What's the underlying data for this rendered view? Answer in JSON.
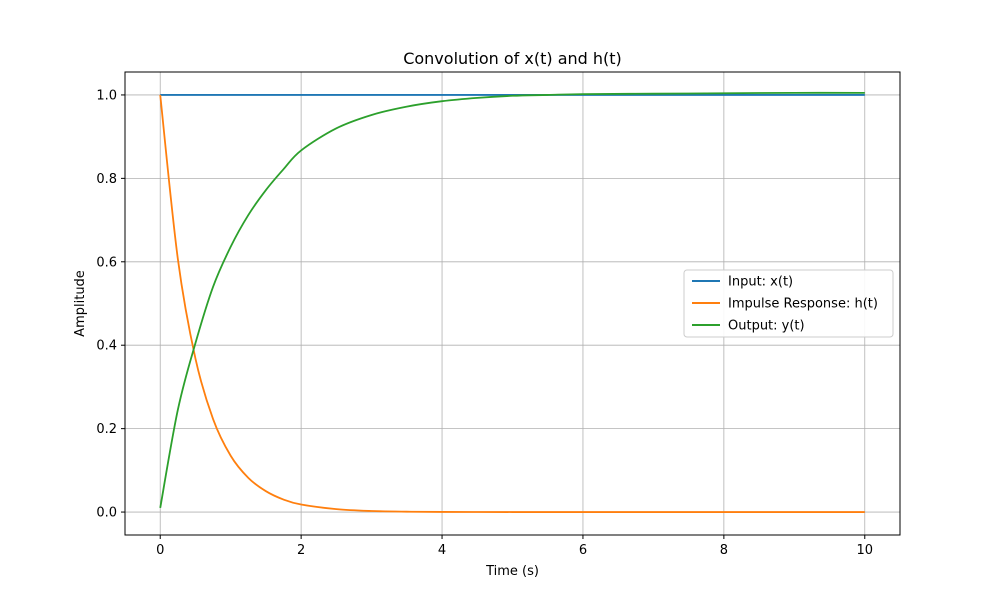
{
  "chart_data": {
    "type": "line",
    "title": "Convolution of x(t) and h(t)",
    "xlabel": "Time (s)",
    "ylabel": "Amplitude",
    "xlim": [
      -0.5,
      10.5
    ],
    "ylim": [
      -0.055,
      1.055
    ],
    "xticks": [
      0,
      2,
      4,
      6,
      8,
      10
    ],
    "yticks": [
      0.0,
      0.2,
      0.4,
      0.6,
      0.8,
      1.0
    ],
    "xtick_labels": [
      "0",
      "2",
      "4",
      "6",
      "8",
      "10"
    ],
    "ytick_labels": [
      "0.0",
      "0.2",
      "0.4",
      "0.6",
      "0.8",
      "1.0"
    ],
    "grid": true,
    "legend_position": "center-right",
    "series": [
      {
        "name": "Input: x(t)",
        "color": "#1f77b4",
        "x": [
          0,
          1,
          2,
          3,
          4,
          5,
          6,
          7,
          8,
          9,
          10
        ],
        "y": [
          1,
          1,
          1,
          1,
          1,
          1,
          1,
          1,
          1,
          1,
          1
        ]
      },
      {
        "name": "Impulse Response: h(t)",
        "color": "#ff7f0e",
        "x": [
          0,
          0.25,
          0.5,
          0.75,
          1,
          1.25,
          1.5,
          1.75,
          2,
          2.5,
          3,
          3.5,
          4,
          4.5,
          5,
          5.5,
          6,
          7,
          8,
          9,
          10
        ],
        "y": [
          1.0,
          0.607,
          0.368,
          0.223,
          0.135,
          0.082,
          0.05,
          0.03,
          0.018,
          0.007,
          0.0025,
          0.0009,
          0.0003,
          0.0001,
          5e-05,
          2e-05,
          1e-05,
          0.0,
          0.0,
          0.0,
          0.0
        ]
      },
      {
        "name": "Output: y(t)",
        "color": "#2ca02c",
        "x": [
          0,
          0.25,
          0.5,
          0.75,
          1,
          1.25,
          1.5,
          1.75,
          2,
          2.5,
          3,
          3.5,
          4,
          4.5,
          5,
          5.5,
          6,
          7,
          8,
          9,
          10
        ],
        "y": [
          0.01,
          0.245,
          0.405,
          0.54,
          0.636,
          0.712,
          0.772,
          0.822,
          0.867,
          0.92,
          0.952,
          0.972,
          0.985,
          0.993,
          0.998,
          1.0,
          1.002,
          1.003,
          1.004,
          1.005,
          1.005
        ]
      }
    ]
  }
}
